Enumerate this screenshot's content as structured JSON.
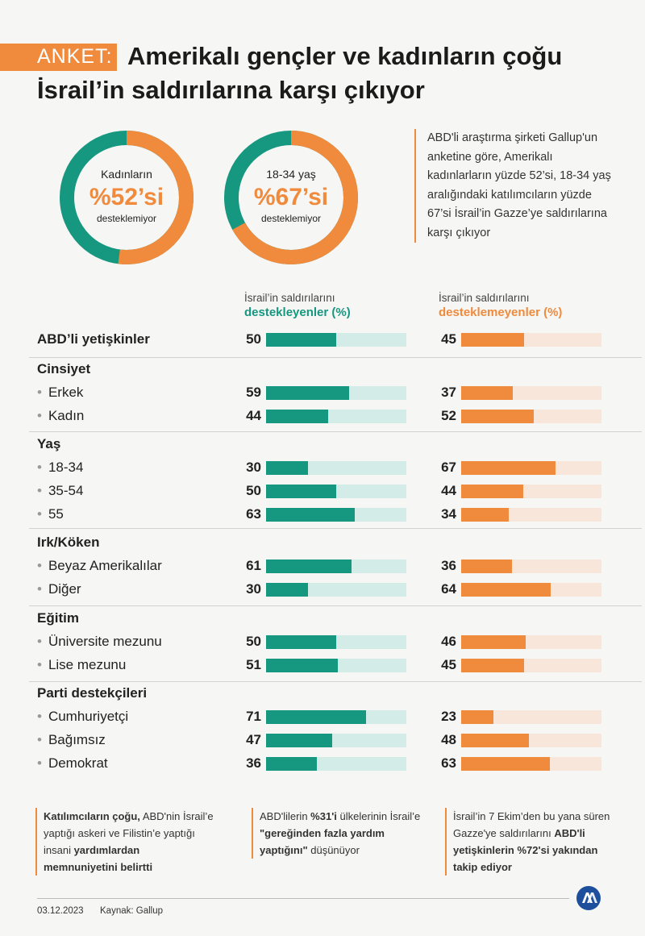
{
  "header": {
    "tag": "ANKET:",
    "title_line1": "Amerikalı gençler ve kadınların çoğu",
    "title_line2": "İsrail’in saldırılarına karşı çıkıyor"
  },
  "donuts": [
    {
      "label": "Kadınların",
      "percent_text": "%52’si",
      "sub": "desteklemiyor",
      "value": 52
    },
    {
      "label": "18-34 yaş",
      "percent_text": "%67’si",
      "sub": "desteklemiyor",
      "value": 67
    }
  ],
  "intro_text": "ABD'li araştırma şirketi Gallup'un anketine göre, Amerikalı kadınlarların yüzde 52’si, 18-34 yaş aralığındaki katılımcıların yüzde 67’si İsrail’in Gazze’ye saldırılarına karşı çıkıyor",
  "columns": {
    "support_small": "İsrail’in saldırılarını",
    "support_big": "destekleyenler (%)",
    "oppose_small": "İsrail’in saldırılarını",
    "oppose_big": "desteklemeyenler (%)"
  },
  "colors": {
    "support": "#16977f",
    "oppose": "#f08a3c",
    "support_track": "#d4ece8",
    "oppose_track": "#f9e6da"
  },
  "chart_data": {
    "type": "bar",
    "orientation": "horizontal",
    "xlim": [
      0,
      100
    ],
    "series": [
      {
        "name": "destekleyenler (%)",
        "values": [
          50,
          59,
          44,
          30,
          50,
          63,
          61,
          30,
          50,
          51,
          71,
          47,
          36
        ]
      },
      {
        "name": "desteklemeyenler (%)",
        "values": [
          45,
          37,
          52,
          67,
          44,
          34,
          36,
          64,
          46,
          45,
          23,
          48,
          63
        ]
      }
    ],
    "rows": [
      {
        "kind": "total",
        "label": "ABD’li yetişkinler",
        "support": 50,
        "oppose": 45
      },
      {
        "kind": "section",
        "label": "Cinsiyet"
      },
      {
        "kind": "item",
        "label": "Erkek",
        "support": 59,
        "oppose": 37
      },
      {
        "kind": "item",
        "label": "Kadın",
        "support": 44,
        "oppose": 52
      },
      {
        "kind": "section",
        "label": "Yaş"
      },
      {
        "kind": "item",
        "label": "18-34",
        "support": 30,
        "oppose": 67
      },
      {
        "kind": "item",
        "label": "35-54",
        "support": 50,
        "oppose": 44
      },
      {
        "kind": "item",
        "label": "55",
        "support": 63,
        "oppose": 34
      },
      {
        "kind": "section",
        "label": "Irk/Köken"
      },
      {
        "kind": "item",
        "label": "Beyaz Amerikalılar",
        "support": 61,
        "oppose": 36
      },
      {
        "kind": "item",
        "label": "Diğer",
        "support": 30,
        "oppose": 64
      },
      {
        "kind": "section",
        "label": "Eğitim"
      },
      {
        "kind": "item",
        "label": "Üniversite mezunu",
        "support": 50,
        "oppose": 46
      },
      {
        "kind": "item",
        "label": "Lise mezunu",
        "support": 51,
        "oppose": 45
      },
      {
        "kind": "section",
        "label": "Parti destekçileri"
      },
      {
        "kind": "item",
        "label": "Cumhuriyetçi",
        "support": 71,
        "oppose": 23
      },
      {
        "kind": "item",
        "label": "Bağımsız",
        "support": 47,
        "oppose": 48
      },
      {
        "kind": "item",
        "label": "Demokrat",
        "support": 36,
        "oppose": 63
      }
    ]
  },
  "notes": [
    {
      "parts": [
        {
          "b": true,
          "t": "Katılımcıların çoğu,"
        },
        {
          "b": false,
          "t": " ABD'nin İsrail’e yaptığı askeri ve Filistin’e yaptığı insani "
        },
        {
          "b": true,
          "t": "yardımlardan memnuniyetini belirtti"
        }
      ]
    },
    {
      "parts": [
        {
          "b": false,
          "t": "ABD'lilerin "
        },
        {
          "b": true,
          "t": "%31'i"
        },
        {
          "b": false,
          "t": " ülkelerinin İsrail’e "
        },
        {
          "b": true,
          "t": "\"gereğinden fazla yardım yaptığını\""
        },
        {
          "b": false,
          "t": " düşünüyor"
        }
      ]
    },
    {
      "parts": [
        {
          "b": false,
          "t": "İsrail’in 7 Ekim’den bu yana süren Gazze'ye saldırılarını "
        },
        {
          "b": true,
          "t": "ABD'li yetişkinlerin %72'si yakından takip ediyor"
        }
      ]
    }
  ],
  "footer": {
    "date": "03.12.2023",
    "source": "Kaynak: Gallup",
    "logo": "aa-logo-icon"
  }
}
